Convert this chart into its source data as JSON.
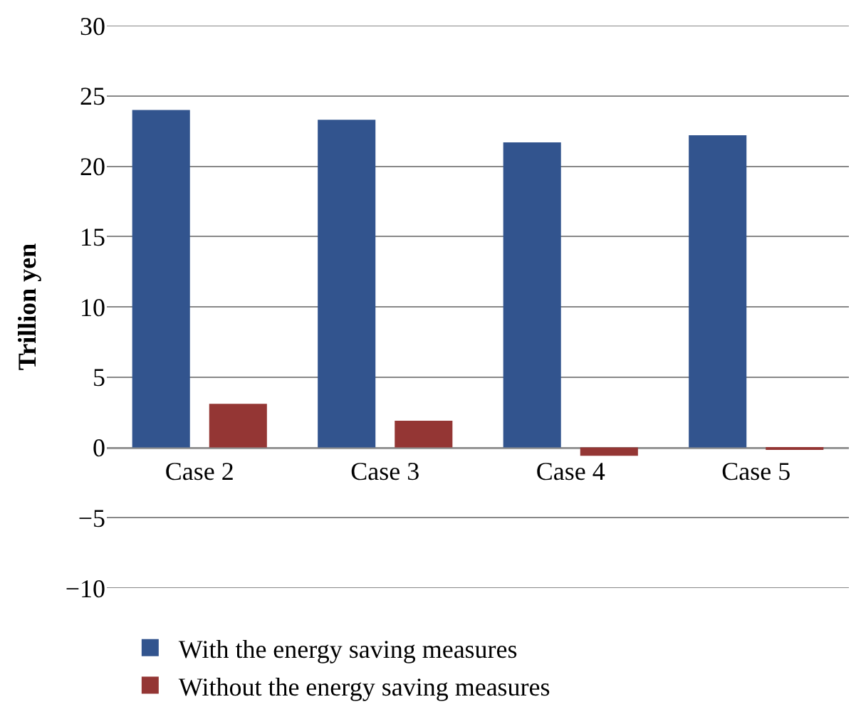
{
  "chart_data": {
    "type": "bar",
    "ylabel": "Trillion yen",
    "categories": [
      "Case 2",
      "Case 3",
      "Case 4",
      "Case 5"
    ],
    "series": [
      {
        "name": "With the energy saving measures",
        "color": "#32548e",
        "values": [
          24.0,
          23.3,
          21.7,
          22.2
        ]
      },
      {
        "name": "Without the energy saving measures",
        "color": "#943634",
        "values": [
          3.1,
          1.9,
          -0.6,
          -0.1
        ]
      }
    ],
    "ylim": [
      -10,
      30
    ],
    "yticks": [
      {
        "value": -10,
        "label": "−10"
      },
      {
        "value": -5,
        "label": "−5"
      },
      0,
      5,
      10,
      15,
      20,
      25,
      30
    ],
    "grid": "y",
    "legend": "bottom left"
  }
}
